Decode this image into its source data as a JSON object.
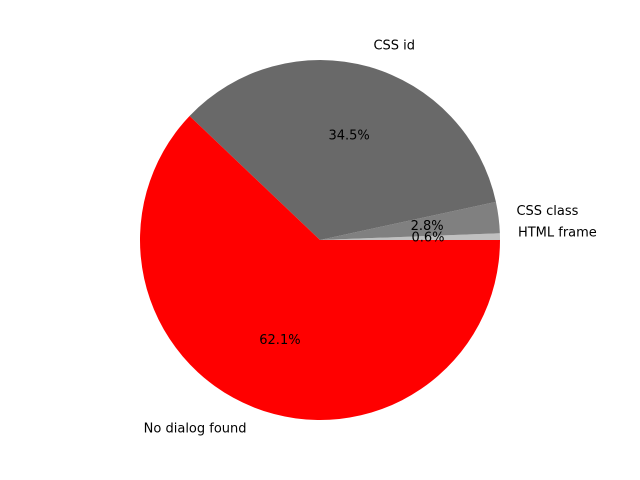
{
  "chart_data": {
    "type": "pie",
    "start_angle_deg": 0,
    "direction": "counterclockwise",
    "slices": [
      {
        "label": "HTML frame",
        "percent_label": "0.6%",
        "value": 0.6,
        "color": "#c0c0c0"
      },
      {
        "label": "CSS class",
        "percent_label": "2.8%",
        "value": 2.8,
        "color": "#808080"
      },
      {
        "label": "CSS id",
        "percent_label": "34.5%",
        "value": 34.5,
        "color": "#696969"
      },
      {
        "label": "No dialog found",
        "percent_label": "62.1%",
        "value": 62.1,
        "color": "#ff0000"
      }
    ]
  }
}
